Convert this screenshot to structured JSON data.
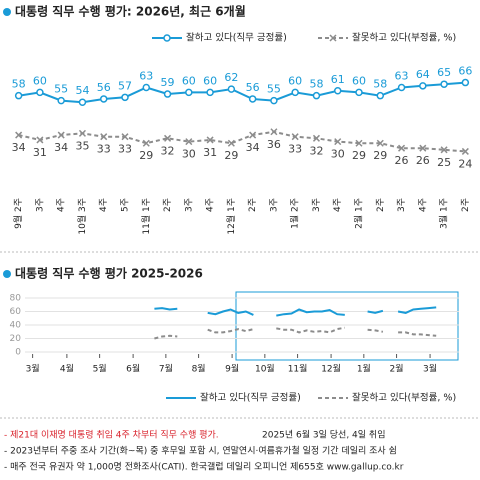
{
  "chart_data": [
    {
      "type": "line",
      "title": "대통령 직무 수행 평가: 2026년, 최근 6개월",
      "categories": [
        "9월 2주",
        "3주",
        "4주",
        "10월 3주",
        "4주",
        "5주",
        "11월 1주",
        "2주",
        "3주",
        "4주",
        "12월 1주",
        "2주",
        "3주",
        "1월 2주",
        "3주",
        "4주",
        "2월 1주",
        "2주",
        "3주",
        "4주",
        "3월 1주",
        "2주"
      ],
      "ylim": [
        20,
        70
      ],
      "series": [
        {
          "name": "잘하고 있다(직무 긍정률)",
          "color": "#1a9bd7",
          "marker": "circle",
          "dash": false,
          "values": [
            58,
            60,
            55,
            54,
            56,
            57,
            63,
            59,
            60,
            60,
            62,
            56,
            55,
            60,
            58,
            61,
            60,
            58,
            63,
            64,
            65,
            66
          ]
        },
        {
          "name": "잘못하고 있다(부정률, %)",
          "color": "#8c8c8c",
          "marker": "x",
          "dash": true,
          "values": [
            34,
            31,
            34,
            35,
            33,
            33,
            29,
            32,
            30,
            31,
            29,
            34,
            36,
            33,
            32,
            30,
            29,
            29,
            26,
            26,
            25,
            24
          ]
        }
      ]
    },
    {
      "type": "line",
      "title": "대통령 직무 수행 평가 2025-2026",
      "x": [
        16,
        17,
        18,
        19,
        20,
        21,
        22,
        23,
        24,
        25,
        26,
        27,
        28,
        29,
        30,
        31,
        32,
        33,
        34,
        35,
        36,
        37,
        38,
        39,
        40,
        41,
        42,
        43,
        44,
        45,
        46,
        47,
        48,
        49,
        50,
        51,
        52,
        53
      ],
      "xlim": [
        -1,
        56
      ],
      "xticks": [
        {
          "value": 0,
          "label": "3월"
        },
        {
          "value": 4.5,
          "label": "4월"
        },
        {
          "value": 8.8,
          "label": "5월"
        },
        {
          "value": 13.2,
          "label": "6월"
        },
        {
          "value": 17.5,
          "label": "7월"
        },
        {
          "value": 21.8,
          "label": "8월"
        },
        {
          "value": 26.2,
          "label": "9월"
        },
        {
          "value": 30.5,
          "label": "10월"
        },
        {
          "value": 34.8,
          "label": "11월"
        },
        {
          "value": 39.2,
          "label": "12월"
        },
        {
          "value": 43.5,
          "label": "1월"
        },
        {
          "value": 47.8,
          "label": "2월"
        },
        {
          "value": 52.2,
          "label": "3월"
        }
      ],
      "ylim": [
        0,
        80
      ],
      "yticks": [
        0,
        20,
        40,
        60,
        80
      ],
      "grid": true,
      "series": [
        {
          "name": "잘하고 있다(직무 긍정률)",
          "color": "#1a9bd7",
          "dash": false,
          "values": [
            64,
            65,
            63,
            64,
            null,
            null,
            null,
            58,
            56,
            60,
            63,
            58,
            60,
            55,
            null,
            null,
            54,
            56,
            57,
            63,
            59,
            60,
            60,
            62,
            56,
            55,
            null,
            null,
            60,
            58,
            61,
            null,
            60,
            58,
            63,
            64,
            65,
            66
          ]
        },
        {
          "name": "잘못하고 있다(부정률, %)",
          "color": "#8c8c8c",
          "dash": true,
          "values": [
            20,
            23,
            24,
            23,
            null,
            null,
            null,
            33,
            29,
            29,
            31,
            34,
            31,
            34,
            null,
            null,
            35,
            33,
            33,
            29,
            32,
            30,
            31,
            29,
            34,
            36,
            null,
            null,
            33,
            32,
            30,
            null,
            29,
            29,
            26,
            26,
            25,
            24
          ]
        }
      ]
    }
  ],
  "notes": [
    "- 제21대 이재명 대통령 취임 4주 차부터 직무 수행 평가.",
    "2025년 6월 3일 당선, 4일 취임",
    "- 2023년부터 주중 조사 기간(화~목) 중 후무일 포함 시, 연말연시·여름휴가철 일정 기간 데일리 조사 쉼",
    "- 매주 전국 유권자 약 1,000명 전화조사(CATI). 한국갤럽 데일리 오피니언 제655호 www.gallup.co.kr"
  ]
}
